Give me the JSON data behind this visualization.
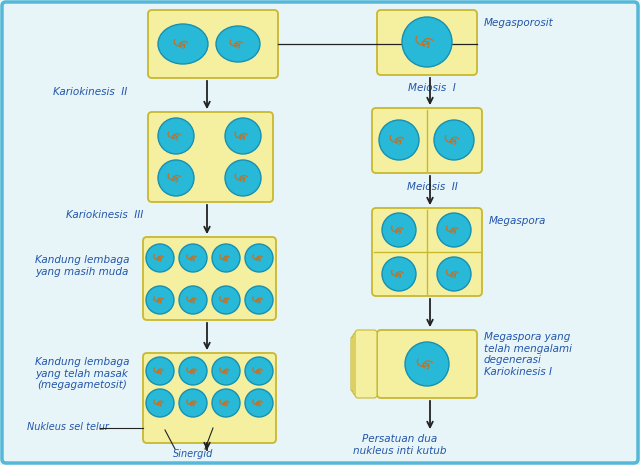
{
  "bg_color": "#e8f5f8",
  "border_color": "#55b8d8",
  "cell_fill": "#f5f0a0",
  "cell_edge": "#c8b830",
  "nucleus_fill": "#28b8d8",
  "nucleus_edge": "#1890b0",
  "chrom_color": "#c8904040",
  "text_color": "#2255aa",
  "arrow_color": "#222222",
  "left_labels": [
    "Kariokinesis  II",
    "Kariokinesis  III",
    "Kandung lembaga\nyang masih muda",
    "Kandung lembaga\nyang telah masak\n(megagametosit)"
  ],
  "right_labels": [
    "Megasporosit",
    "Meiosis  I",
    "Meiosis  II",
    "Megaspora",
    "Megaspora yang\ntelah mengalami\ndegenerasi\nKariokinesis I"
  ],
  "bottom_label": "Persatuan dua\nnukleus inti kutub",
  "sinergid_label": "Sinergid",
  "nukleus_label": "Nukleus sel telur"
}
